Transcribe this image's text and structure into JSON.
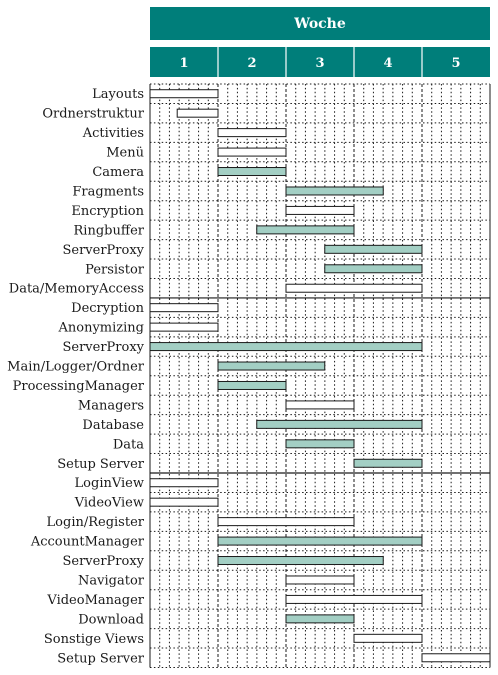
{
  "chart_data": {
    "type": "gantt",
    "header": "Woche",
    "weeks": [
      "1",
      "2",
      "3",
      "4",
      "5"
    ],
    "colors": {
      "header": "#007e7a",
      "bar_filled": "#a3cfc4",
      "bar_empty": "#ffffff",
      "bar_stroke": "#1a1a1a",
      "grid": "#1a1a1a"
    },
    "groups": [
      {
        "tasks": [
          {
            "label": "Layouts",
            "start": 0,
            "end": 1,
            "filled": false
          },
          {
            "label": "Ordnerstruktur",
            "start": 0.4,
            "end": 1,
            "filled": false
          },
          {
            "label": "Activities",
            "start": 1,
            "end": 2,
            "filled": false
          },
          {
            "label": "Menü",
            "start": 1,
            "end": 2,
            "filled": false
          },
          {
            "label": "Camera",
            "start": 1,
            "end": 2,
            "filled": true
          },
          {
            "label": "Fragments",
            "start": 2,
            "end": 3.43,
            "filled": true
          },
          {
            "label": "Encryption",
            "start": 2,
            "end": 3,
            "filled": false
          },
          {
            "label": "Ringbuffer",
            "start": 1.57,
            "end": 3,
            "filled": true
          },
          {
            "label": "ServerProxy",
            "start": 2.57,
            "end": 4,
            "filled": true
          },
          {
            "label": "Persistor",
            "start": 2.57,
            "end": 4,
            "filled": true
          },
          {
            "label": "Data/MemoryAccess",
            "start": 2,
            "end": 4,
            "filled": false
          }
        ]
      },
      {
        "tasks": [
          {
            "label": "Decryption",
            "start": 0,
            "end": 1,
            "filled": false
          },
          {
            "label": "Anonymizing",
            "start": 0,
            "end": 1,
            "filled": false
          },
          {
            "label": "ServerProxy",
            "start": 0,
            "end": 4,
            "filled": true
          },
          {
            "label": "Main/Logger/Ordner",
            "start": 1,
            "end": 2.57,
            "filled": true
          },
          {
            "label": "ProcessingManager",
            "start": 1,
            "end": 2,
            "filled": true
          },
          {
            "label": "Managers",
            "start": 2,
            "end": 3,
            "filled": false
          },
          {
            "label": "Database",
            "start": 1.57,
            "end": 4,
            "filled": true
          },
          {
            "label": "Data",
            "start": 2,
            "end": 3,
            "filled": true
          },
          {
            "label": "Setup Server",
            "start": 3,
            "end": 4,
            "filled": true
          }
        ]
      },
      {
        "tasks": [
          {
            "label": "LoginView",
            "start": 0,
            "end": 1,
            "filled": false
          },
          {
            "label": "VideoView",
            "start": 0,
            "end": 1,
            "filled": false
          },
          {
            "label": "Login/Register",
            "start": 1,
            "end": 3,
            "filled": false
          },
          {
            "label": "AccountManager",
            "start": 1,
            "end": 4,
            "filled": true
          },
          {
            "label": "ServerProxy",
            "start": 1,
            "end": 3.43,
            "filled": true
          },
          {
            "label": "Navigator",
            "start": 2,
            "end": 3,
            "filled": false
          },
          {
            "label": "VideoManager",
            "start": 2,
            "end": 4,
            "filled": false
          },
          {
            "label": "Download",
            "start": 2,
            "end": 3,
            "filled": true
          },
          {
            "label": "Sonstige Views",
            "start": 3,
            "end": 4,
            "filled": false
          },
          {
            "label": "Setup Server",
            "start": 4,
            "end": 5,
            "filled": false
          }
        ]
      }
    ]
  }
}
